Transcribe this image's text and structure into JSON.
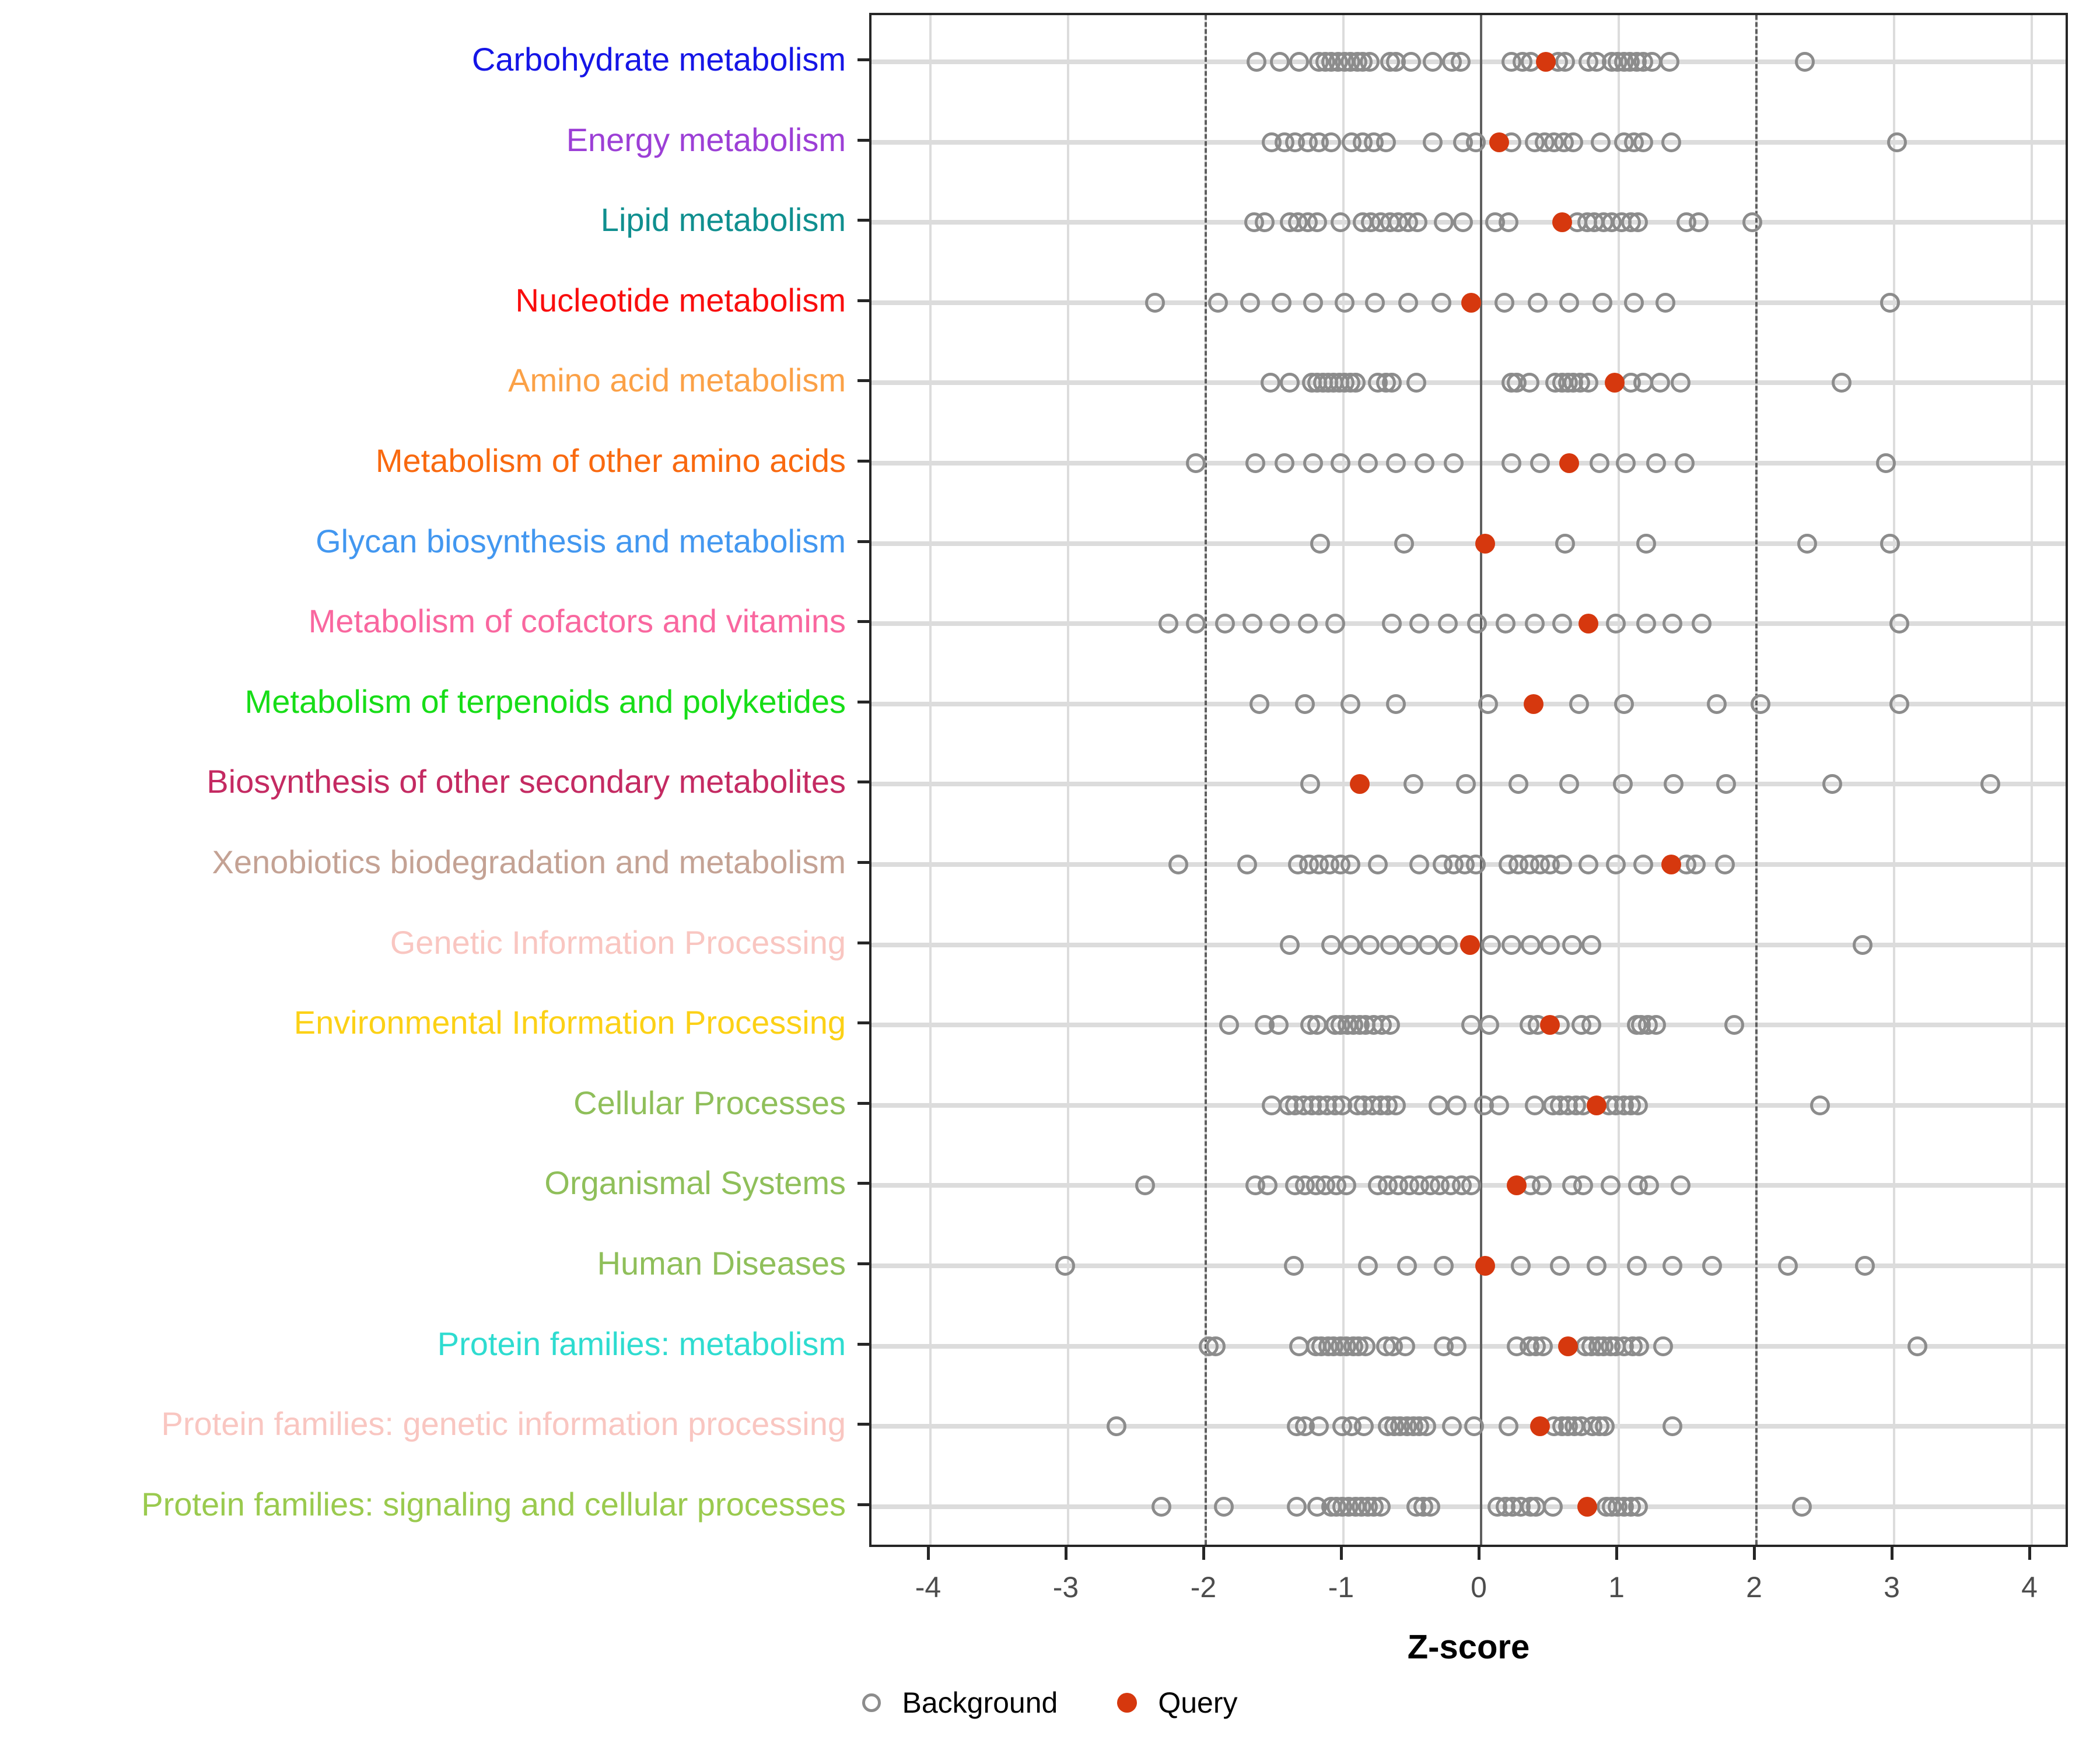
{
  "chart_data": {
    "type": "scatter",
    "title": "",
    "xlabel": "Z-score",
    "xlim": [
      -4.45,
      4.3
    ],
    "x_ticks": [
      -4,
      -3,
      -2,
      -1,
      0,
      1,
      2,
      3,
      4
    ],
    "reference_lines": {
      "solid_at": 0,
      "dashed_at": [
        -2,
        2
      ]
    },
    "grid": "major-vertical-and-row-bands",
    "legend_position": "bottom-center",
    "point_colors": {
      "background_stroke": "#8c8c8c",
      "query_fill": "#d6380e"
    },
    "legend": {
      "background_label": "Background",
      "query_label": "Query"
    },
    "rows": [
      {
        "label": "Carbohydrate metabolism",
        "label_color": "#1515e6",
        "query": 0.47,
        "background": [
          -1.63,
          -1.46,
          -1.32,
          -1.18,
          -1.13,
          -1.09,
          -1.04,
          -0.99,
          -0.95,
          -0.9,
          -0.86,
          -0.81,
          -0.66,
          -0.62,
          -0.51,
          -0.35,
          -0.21,
          -0.15,
          0.22,
          0.3,
          0.36,
          0.56,
          0.61,
          0.78,
          0.84,
          0.95,
          0.99,
          1.04,
          1.08,
          1.13,
          1.18,
          1.24,
          1.37,
          2.35
        ]
      },
      {
        "label": "Energy metabolism",
        "label_color": "#9c3fd6",
        "query": 0.13,
        "background": [
          -1.52,
          -1.43,
          -1.35,
          -1.26,
          -1.18,
          -1.09,
          -0.94,
          -0.86,
          -0.78,
          -0.69,
          -0.35,
          -0.13,
          -0.04,
          0.22,
          0.39,
          0.46,
          0.53,
          0.6,
          0.67,
          0.87,
          1.04,
          1.11,
          1.18,
          1.38,
          3.02
        ]
      },
      {
        "label": "Lipid metabolism",
        "label_color": "#0f8f8f",
        "query": 0.59,
        "background": [
          -1.65,
          -1.57,
          -1.39,
          -1.33,
          -1.26,
          -1.19,
          -1.02,
          -0.86,
          -0.8,
          -0.73,
          -0.66,
          -0.6,
          -0.53,
          -0.46,
          -0.27,
          -0.13,
          0.1,
          0.2,
          0.7,
          0.77,
          0.82,
          0.89,
          0.95,
          1.02,
          1.09,
          1.14,
          1.49,
          1.58,
          1.97
        ]
      },
      {
        "label": "Nucleotide metabolism",
        "label_color": "#f90d0d",
        "query": -0.07,
        "background": [
          -2.37,
          -1.91,
          -1.68,
          -1.45,
          -1.22,
          -0.99,
          -0.77,
          -0.53,
          -0.29,
          0.17,
          0.41,
          0.64,
          0.88,
          1.11,
          1.34,
          2.97
        ]
      },
      {
        "label": "Amino acid metabolism",
        "label_color": "#fba147",
        "query": 0.97,
        "background": [
          -1.53,
          -1.39,
          -1.23,
          -1.19,
          -1.15,
          -1.11,
          -1.07,
          -1.03,
          -0.99,
          -0.95,
          -0.91,
          -0.75,
          -0.69,
          -0.65,
          -0.47,
          0.22,
          0.26,
          0.35,
          0.54,
          0.59,
          0.63,
          0.67,
          0.72,
          0.78,
          1.09,
          1.18,
          1.3,
          1.45,
          2.62
        ]
      },
      {
        "label": "Metabolism of other amino acids",
        "label_color": "#f9690f",
        "query": 0.64,
        "background": [
          -2.07,
          -1.64,
          -1.43,
          -1.22,
          -1.02,
          -0.82,
          -0.62,
          -0.41,
          -0.2,
          0.22,
          0.43,
          0.86,
          1.05,
          1.27,
          1.48,
          2.94
        ]
      },
      {
        "label": "Glycan biosynthesis and metabolism",
        "label_color": "#4297f0",
        "query": 0.03,
        "background": [
          -1.17,
          -0.56,
          0.61,
          1.2,
          2.37,
          2.97
        ]
      },
      {
        "label": "Metabolism of cofactors and vitamins",
        "label_color": "#f9679f",
        "query": 0.78,
        "background": [
          -2.27,
          -2.07,
          -1.86,
          -1.66,
          -1.46,
          -1.26,
          -1.06,
          -0.65,
          -0.45,
          -0.24,
          -0.03,
          0.18,
          0.39,
          0.59,
          0.98,
          1.2,
          1.39,
          1.6,
          3.04
        ]
      },
      {
        "label": "Metabolism of terpenoids and polyketides",
        "label_color": "#17dd17",
        "query": 0.38,
        "background": [
          -1.61,
          -1.28,
          -0.95,
          -0.62,
          0.05,
          0.71,
          1.04,
          1.71,
          2.03,
          3.04
        ]
      },
      {
        "label": "Biosynthesis of other secondary metabolites",
        "label_color": "#c42a62",
        "query": -0.88,
        "background": [
          -1.24,
          -0.49,
          -0.11,
          0.27,
          0.64,
          1.03,
          1.4,
          1.78,
          2.55,
          3.7
        ]
      },
      {
        "label": "Xenobiotics biodegradation and metabolism",
        "label_color": "#c4a294",
        "query": 1.38,
        "background": [
          -2.2,
          -1.7,
          -1.33,
          -1.25,
          -1.18,
          -1.1,
          -1.02,
          -0.95,
          -0.75,
          -0.45,
          -0.28,
          -0.2,
          -0.12,
          -0.04,
          0.2,
          0.27,
          0.35,
          0.43,
          0.5,
          0.59,
          0.78,
          0.98,
          1.18,
          1.49,
          1.56,
          1.77
        ]
      },
      {
        "label": "Genetic Information Processing",
        "label_color": "#f9c6c1",
        "query": -0.08,
        "background": [
          -1.39,
          -1.09,
          -0.95,
          -0.81,
          -0.66,
          -0.52,
          -0.38,
          -0.24,
          0.07,
          0.22,
          0.36,
          0.5,
          0.66,
          0.8,
          2.77
        ]
      },
      {
        "label": "Environmental Information Processing",
        "label_color": "#fcd116",
        "query": 0.5,
        "background": [
          -1.83,
          -1.57,
          -1.47,
          -1.24,
          -1.19,
          -1.06,
          -1.02,
          -0.97,
          -0.93,
          -0.88,
          -0.84,
          -0.78,
          -0.72,
          -0.66,
          -0.07,
          0.06,
          0.35,
          0.41,
          0.57,
          0.73,
          0.8,
          1.13,
          1.16,
          1.21,
          1.27,
          1.84
        ]
      },
      {
        "label": "Cellular Processes",
        "label_color": "#8fbf5a",
        "query": 0.84,
        "background": [
          -1.52,
          -1.4,
          -1.35,
          -1.29,
          -1.23,
          -1.18,
          -1.12,
          -1.06,
          -1.01,
          -0.9,
          -0.85,
          -0.79,
          -0.73,
          -0.68,
          -0.62,
          -0.31,
          -0.18,
          0.02,
          0.13,
          0.39,
          0.52,
          0.57,
          0.63,
          0.69,
          0.74,
          0.93,
          0.98,
          1.04,
          1.09,
          1.14,
          2.46
        ]
      },
      {
        "label": "Organismal Systems",
        "label_color": "#8fbf5a",
        "query": 0.26,
        "background": [
          -2.44,
          -1.64,
          -1.55,
          -1.35,
          -1.28,
          -1.2,
          -1.13,
          -1.05,
          -0.98,
          -0.75,
          -0.68,
          -0.6,
          -0.52,
          -0.45,
          -0.37,
          -0.3,
          -0.22,
          -0.14,
          -0.07,
          0.36,
          0.44,
          0.66,
          0.74,
          0.94,
          1.14,
          1.22,
          1.45
        ]
      },
      {
        "label": "Human Diseases",
        "label_color": "#8fbf5a",
        "query": 0.03,
        "background": [
          -3.02,
          -1.36,
          -0.82,
          -0.54,
          -0.27,
          0.29,
          0.57,
          0.84,
          1.13,
          1.39,
          1.68,
          2.23,
          2.79
        ]
      },
      {
        "label": "Protein families: metabolism",
        "label_color": "#2edcd0",
        "query": 0.63,
        "background": [
          -1.98,
          -1.93,
          -1.32,
          -1.2,
          -1.16,
          -1.11,
          -1.07,
          -1.02,
          -0.98,
          -0.93,
          -0.89,
          -0.84,
          -0.69,
          -0.64,
          -0.55,
          -0.27,
          -0.18,
          0.26,
          0.35,
          0.4,
          0.45,
          0.76,
          0.8,
          0.85,
          0.89,
          0.94,
          0.98,
          1.04,
          1.1,
          1.15,
          1.32,
          3.17
        ]
      },
      {
        "label": "Protein families: genetic information processing",
        "label_color": "#f9c6c1",
        "query": 0.43,
        "background": [
          -2.65,
          -1.34,
          -1.28,
          -1.18,
          -1.01,
          -0.94,
          -0.85,
          -0.68,
          -0.63,
          -0.59,
          -0.54,
          -0.49,
          -0.45,
          -0.4,
          -0.21,
          -0.05,
          0.2,
          0.53,
          0.59,
          0.63,
          0.68,
          0.73,
          0.81,
          0.86,
          0.9,
          1.39
        ]
      },
      {
        "label": "Protein families: signaling and cellular processes",
        "label_color": "#9aca4e",
        "query": 0.77,
        "background": [
          -2.32,
          -1.87,
          -1.34,
          -1.19,
          -1.09,
          -1.05,
          -1.01,
          -0.96,
          -0.91,
          -0.87,
          -0.82,
          -0.78,
          -0.73,
          -0.47,
          -0.42,
          -0.37,
          0.12,
          0.18,
          0.23,
          0.29,
          0.36,
          0.4,
          0.52,
          0.91,
          0.95,
          0.99,
          1.04,
          1.09,
          1.14,
          2.33
        ]
      }
    ]
  }
}
